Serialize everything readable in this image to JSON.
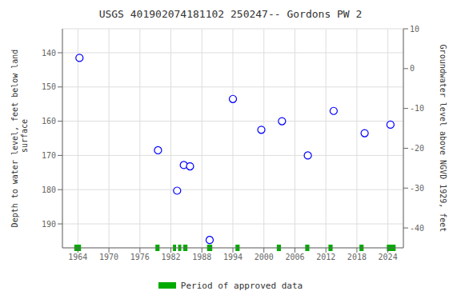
{
  "chart_data": {
    "type": "scatter",
    "title": "USGS 401902074181102 250247-- Gordons PW 2",
    "ylabel": "Depth to water level, feet below land\n surface",
    "y2label": "Groundwater level above NGVD 1929, feet",
    "x": [
      1964.3,
      1979.5,
      1983.2,
      1984.5,
      1985.7,
      1989.5,
      1994.0,
      1999.5,
      2003.5,
      2008.5,
      2013.5,
      2019.5,
      2024.5
    ],
    "values": [
      141.5,
      168.5,
      180.3,
      172.8,
      173.2,
      194.7,
      153.5,
      162.5,
      160.0,
      170.0,
      157.0,
      163.5,
      161.0
    ],
    "color": "blue",
    "marker": "circle",
    "xlim": [
      1961,
      2027
    ],
    "xticks": [
      1964,
      1970,
      1976,
      1982,
      1988,
      1994,
      2000,
      2006,
      2012,
      2018,
      2024
    ],
    "ylim": [
      197,
      133
    ],
    "yticks": [
      140,
      150,
      160,
      170,
      180,
      190
    ],
    "y2lim": [
      -45,
      10
    ],
    "y2ticks": [
      10,
      0,
      -10,
      -20,
      -30,
      -40
    ],
    "grid": true,
    "legend": "bottom",
    "periods": {
      "name": "Period of approved data",
      "color": "#00aa00",
      "ranges": [
        [
          1963.3,
          1964.6
        ],
        [
          1979.0,
          1979.8
        ],
        [
          1982.4,
          1983.0
        ],
        [
          1983.4,
          1984.0
        ],
        [
          1984.4,
          1985.2
        ],
        [
          1989.0,
          1990.0
        ],
        [
          1994.5,
          1995.3
        ],
        [
          2002.5,
          2003.3
        ],
        [
          2008.0,
          2008.8
        ],
        [
          2012.5,
          2013.3
        ],
        [
          2018.5,
          2019.3
        ],
        [
          2023.8,
          2025.5
        ]
      ]
    }
  }
}
